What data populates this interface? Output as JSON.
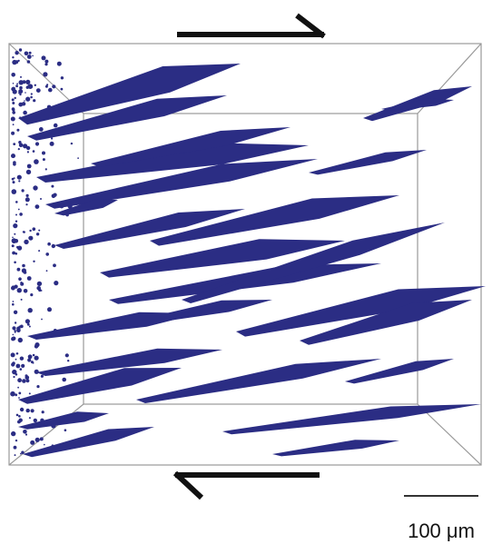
{
  "scale_bar": {
    "label": "100 μm"
  }
}
